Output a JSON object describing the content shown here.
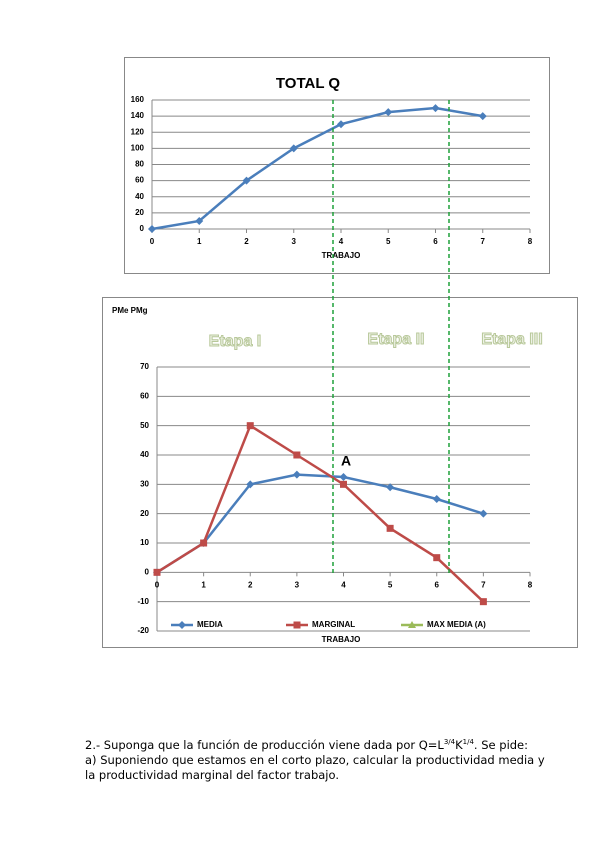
{
  "chart_data": [
    {
      "type": "line",
      "title": "TOTAL Q",
      "x_label": "TRABAJO",
      "x": [
        0,
        1,
        2,
        3,
        4,
        5,
        6,
        7
      ],
      "series": [
        {
          "name": null,
          "color": "#4a7ebb",
          "marker": "diamond",
          "values": [
            0,
            10,
            60,
            100,
            130,
            145,
            150,
            140
          ]
        }
      ],
      "xlim": [
        0,
        8
      ],
      "xticks": [
        0,
        1,
        2,
        3,
        4,
        5,
        6,
        7,
        8
      ],
      "ylim": [
        0,
        160
      ],
      "yticks": [
        0,
        20,
        40,
        60,
        80,
        100,
        120,
        140,
        160
      ],
      "grid": true
    },
    {
      "type": "line",
      "y_label": "PMe PMg",
      "x_label": "TRABAJO",
      "stage_labels": [
        "Etapa I",
        "Etapa II",
        "Etapa III"
      ],
      "annotation": "A",
      "x": [
        0,
        1,
        2,
        3,
        4,
        5,
        6,
        7
      ],
      "series": [
        {
          "name": "MEDIA",
          "color": "#4a7ebb",
          "marker": "diamond",
          "values": [
            0,
            10,
            30,
            33.3,
            32.5,
            29,
            25,
            20
          ]
        },
        {
          "name": "MARGINAL",
          "color": "#be4b48",
          "marker": "square",
          "values": [
            0,
            10,
            50,
            40,
            30,
            15,
            5,
            -10
          ]
        },
        {
          "name": "MAX MEDIA (A)",
          "color": "#9bbb59",
          "marker": "triangle",
          "values": [
            null,
            null,
            null,
            null,
            null,
            null,
            null,
            null
          ]
        }
      ],
      "xlim": [
        0,
        8
      ],
      "xticks": [
        0,
        1,
        2,
        3,
        4,
        5,
        6,
        7,
        8
      ],
      "ylim": [
        -20,
        70
      ],
      "yticks": [
        -20,
        -10,
        0,
        10,
        20,
        30,
        40,
        50,
        60,
        70
      ],
      "grid": true,
      "legend": "bottom"
    }
  ],
  "question": {
    "line1": [
      "2.- Suponga que la función de producción viene dada por Q=L",
      "3/4",
      "K",
      "1/4",
      ". Se pide:"
    ],
    "line2": "a)  Suponiendo que estamos en el corto plazo, calcular la productividad media y",
    "line3": "la productividad marginal del factor trabajo."
  }
}
